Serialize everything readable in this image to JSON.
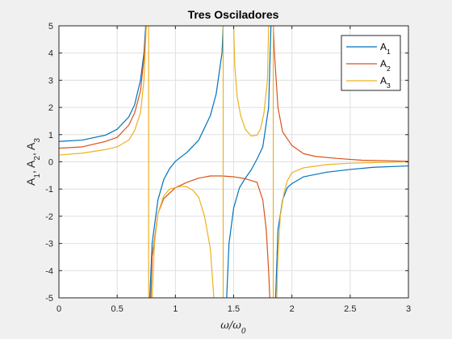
{
  "chart_data": {
    "type": "line",
    "title": "Tres Osciladores",
    "xlabel": {
      "main": "ω/ω",
      "sub": "0"
    },
    "ylabel": [
      {
        "main": "A",
        "sub": "1"
      },
      {
        "main": "A",
        "sub": "2"
      },
      {
        "main": "A",
        "sub": "3"
      }
    ],
    "xlim": [
      0,
      3
    ],
    "ylim": [
      -5,
      5
    ],
    "xticks": [
      0,
      0.5,
      1,
      1.5,
      2,
      2.5,
      3
    ],
    "xtick_labels": [
      "0",
      "0.5",
      "1",
      "1.5",
      "2",
      "2.5",
      "3"
    ],
    "yticks": [
      -5,
      -4,
      -3,
      -2,
      -1,
      0,
      1,
      2,
      3,
      4,
      5
    ],
    "ytick_labels": [
      "-5",
      "-4",
      "-3",
      "-2",
      "-1",
      "0",
      "1",
      "2",
      "3",
      "4",
      "5"
    ],
    "grid": true,
    "legend_position": "top-right",
    "series": [
      {
        "name": {
          "main": "A",
          "sub": "1"
        },
        "color": "#0072BD",
        "points": [
          [
            0,
            0.75
          ],
          [
            0.2,
            0.8
          ],
          [
            0.4,
            0.98
          ],
          [
            0.5,
            1.2
          ],
          [
            0.6,
            1.65
          ],
          [
            0.65,
            2.1
          ],
          [
            0.7,
            3.0
          ],
          [
            0.73,
            4.0
          ],
          [
            0.745,
            5.0
          ],
          null,
          [
            0.78,
            -5.0
          ],
          [
            0.8,
            -3.0
          ],
          [
            0.85,
            -1.4
          ],
          [
            0.9,
            -0.65
          ],
          [
            0.95,
            -0.25
          ],
          [
            1.0,
            0.02
          ],
          [
            1.1,
            0.35
          ],
          [
            1.2,
            0.8
          ],
          [
            1.3,
            1.7
          ],
          [
            1.35,
            2.5
          ],
          [
            1.4,
            4.0
          ],
          [
            1.41,
            5.0
          ],
          null,
          [
            1.44,
            -5.0
          ],
          [
            1.46,
            -3.0
          ],
          [
            1.5,
            -1.7
          ],
          [
            1.55,
            -0.95
          ],
          [
            1.6,
            -0.6
          ],
          [
            1.65,
            -0.3
          ],
          [
            1.7,
            0.1
          ],
          [
            1.75,
            0.55
          ],
          [
            1.8,
            2.0
          ],
          [
            1.82,
            5.0
          ],
          null,
          [
            1.86,
            -5.0
          ],
          [
            1.88,
            -2.5
          ],
          [
            1.92,
            -1.4
          ],
          [
            1.96,
            -0.95
          ],
          [
            2.0,
            -0.8
          ],
          [
            2.1,
            -0.55
          ],
          [
            2.3,
            -0.38
          ],
          [
            2.5,
            -0.28
          ],
          [
            2.7,
            -0.2
          ],
          [
            3.0,
            -0.15
          ]
        ]
      },
      {
        "name": {
          "main": "A",
          "sub": "2"
        },
        "color": "#D95319",
        "points": [
          [
            0,
            0.5
          ],
          [
            0.2,
            0.55
          ],
          [
            0.4,
            0.75
          ],
          [
            0.5,
            0.9
          ],
          [
            0.6,
            1.35
          ],
          [
            0.65,
            1.8
          ],
          [
            0.7,
            2.6
          ],
          [
            0.73,
            3.8
          ],
          [
            0.75,
            5.0
          ],
          null,
          [
            0.79,
            -5.0
          ],
          [
            0.8,
            -3.5
          ],
          [
            0.85,
            -1.9
          ],
          [
            0.9,
            -1.35
          ],
          [
            1.0,
            -0.95
          ],
          [
            1.1,
            -0.75
          ],
          [
            1.2,
            -0.6
          ],
          [
            1.3,
            -0.52
          ],
          [
            1.4,
            -0.52
          ],
          [
            1.5,
            -0.55
          ],
          [
            1.6,
            -0.62
          ],
          [
            1.7,
            -0.75
          ],
          [
            1.75,
            -1.4
          ],
          [
            1.78,
            -2.5
          ],
          [
            1.8,
            -4.0
          ],
          [
            1.81,
            -5.0
          ],
          null,
          [
            1.84,
            5.0
          ],
          [
            1.85,
            4.0
          ],
          [
            1.88,
            2.0
          ],
          [
            1.92,
            1.1
          ],
          [
            2.0,
            0.6
          ],
          [
            2.1,
            0.3
          ],
          [
            2.2,
            0.2
          ],
          [
            2.4,
            0.12
          ],
          [
            2.6,
            0.06
          ],
          [
            3.0,
            0.02
          ]
        ]
      },
      {
        "name": {
          "main": "A",
          "sub": "3"
        },
        "color": "#EDB120",
        "points": [
          [
            0,
            0.25
          ],
          [
            0.2,
            0.32
          ],
          [
            0.4,
            0.45
          ],
          [
            0.5,
            0.55
          ],
          [
            0.6,
            0.8
          ],
          [
            0.65,
            1.15
          ],
          [
            0.7,
            1.8
          ],
          [
            0.73,
            3.0
          ],
          [
            0.75,
            5.0
          ],
          null,
          [
            0.77,
            5.0
          ],
          [
            0.77,
            -5.0
          ],
          null,
          [
            0.8,
            -5.0
          ],
          [
            0.82,
            -3.0
          ],
          [
            0.85,
            -1.9
          ],
          [
            0.9,
            -1.25
          ],
          [
            0.95,
            -1.0
          ],
          [
            1.0,
            -0.95
          ],
          [
            1.05,
            -0.9
          ],
          [
            1.1,
            -0.92
          ],
          [
            1.15,
            -1.05
          ],
          [
            1.2,
            -1.3
          ],
          [
            1.25,
            -2.0
          ],
          [
            1.3,
            -3.2
          ],
          [
            1.33,
            -5.0
          ],
          null,
          [
            1.41,
            5.0
          ],
          [
            1.41,
            -5.0
          ],
          null,
          [
            1.5,
            5.0
          ],
          [
            1.51,
            3.5
          ],
          [
            1.53,
            2.4
          ],
          [
            1.56,
            1.7
          ],
          [
            1.6,
            1.2
          ],
          [
            1.65,
            0.95
          ],
          [
            1.7,
            0.98
          ],
          [
            1.73,
            1.2
          ],
          [
            1.76,
            1.8
          ],
          [
            1.79,
            3.0
          ],
          [
            1.8,
            5.0
          ],
          null,
          [
            1.84,
            5.0
          ],
          [
            1.84,
            -5.0
          ],
          null,
          [
            1.87,
            -5.0
          ],
          [
            1.88,
            -3.5
          ],
          [
            1.9,
            -2.0
          ],
          [
            1.93,
            -1.2
          ],
          [
            1.96,
            -0.7
          ],
          [
            2.0,
            -0.4
          ],
          [
            2.1,
            -0.22
          ],
          [
            2.3,
            -0.1
          ],
          [
            2.5,
            -0.05
          ],
          [
            2.8,
            -0.02
          ],
          [
            3.0,
            0
          ]
        ]
      }
    ]
  }
}
